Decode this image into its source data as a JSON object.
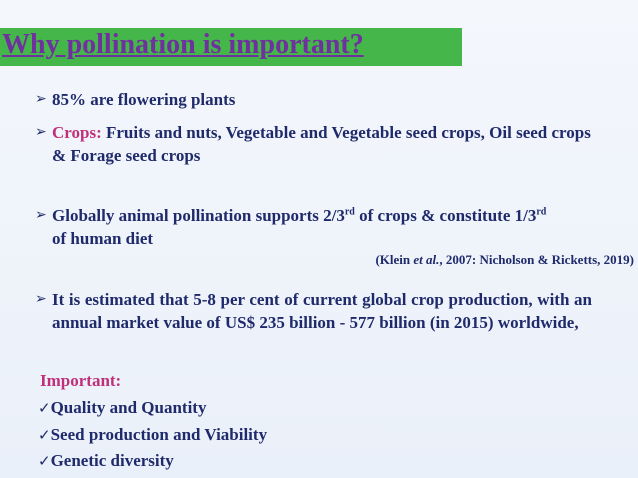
{
  "title": "Why pollination is important?",
  "bullets": [
    {
      "text": "85% are flowering plants"
    },
    {
      "label": "Crops:",
      "text": "Fruits and nuts, Vegetable and Vegetable seed crops, Oil seed crops & Forage seed crops"
    },
    {
      "parts": [
        "Globally animal pollination supports 2/3",
        "rd",
        "of crops & constitute 1/3",
        "rd",
        "of human diet"
      ]
    },
    {
      "text": "It is estimated that 5-8 per cent of current global crop production, with an annual market value of US$ 235 billion - 577 billion (in 2015) worldwide,"
    }
  ],
  "citation": [
    "(Klein",
    "et al.",
    ", 2007: Nicholson & Ricketts, 2019)"
  ],
  "important": {
    "label": "Important:",
    "items": [
      "Quality and Quantity",
      "Seed production and Viability",
      "Genetic diversity"
    ]
  }
}
